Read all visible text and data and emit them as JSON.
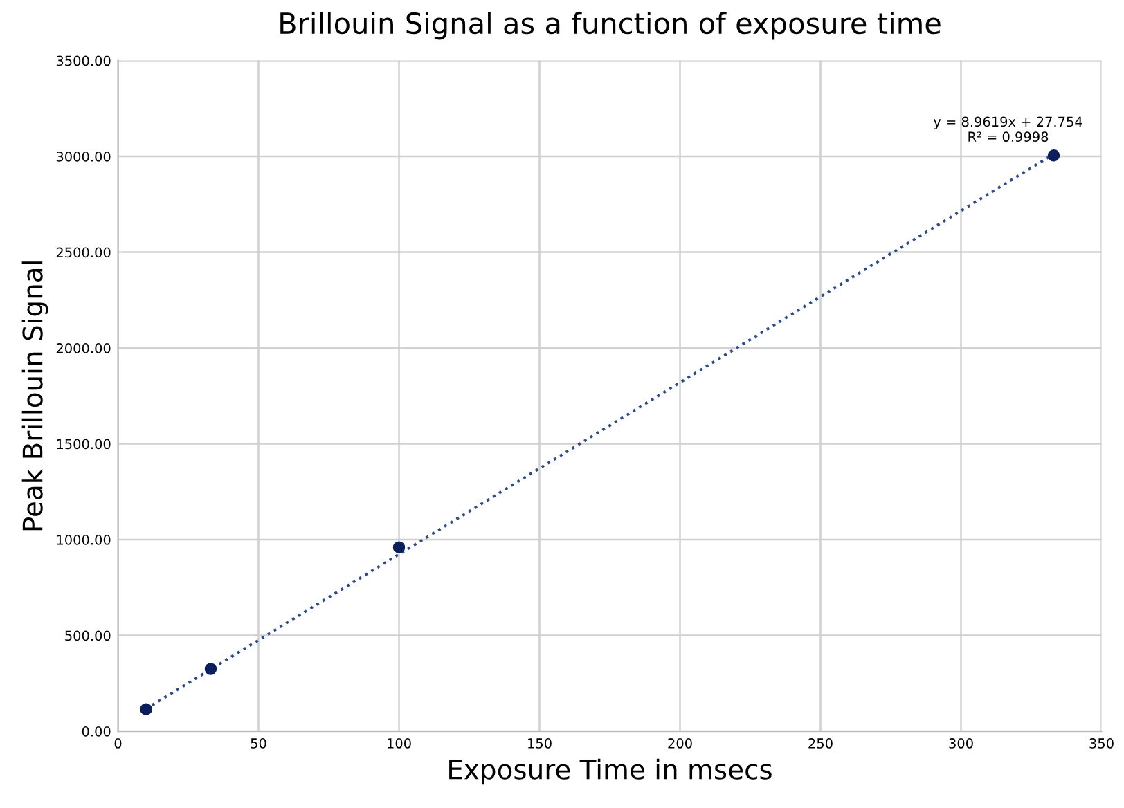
{
  "chart_data": {
    "type": "scatter",
    "title": "Brillouin Signal as a function of exposure time",
    "xlabel": "Exposure Time in msecs",
    "ylabel": "Peak Brillouin Signal",
    "series": [
      {
        "color": "#0b1f5c",
        "x": [
          10,
          33,
          100,
          333
        ],
        "values": [
          115,
          325,
          960,
          3005
        ],
        "marker": "circle"
      },
      {
        "type": "line",
        "color": "#2f4a8a",
        "x": [
          10,
          333
        ],
        "values": [
          117,
          3012
        ],
        "line_style": "dotted",
        "marker": "none"
      }
    ],
    "annotations": [
      "y = 8.9619x + 27.754\nR² = 0.9998"
    ],
    "xlim": [
      0,
      350
    ],
    "xticks": [
      0,
      50,
      100,
      150,
      200,
      250,
      300,
      350
    ],
    "ylim": [
      0,
      3500
    ],
    "yticks": [
      {
        "value": 0,
        "label": "0.00"
      },
      {
        "value": 500,
        "label": "500.00"
      },
      {
        "value": 1000,
        "label": "1000.00"
      },
      {
        "value": 1500,
        "label": "1500.00"
      },
      {
        "value": 2000,
        "label": "2000.00"
      },
      {
        "value": 2500,
        "label": "2500.00"
      },
      {
        "value": 3000,
        "label": "3000.00"
      },
      {
        "value": 3500,
        "label": "3500.00"
      }
    ],
    "grid": true,
    "legend": false
  }
}
